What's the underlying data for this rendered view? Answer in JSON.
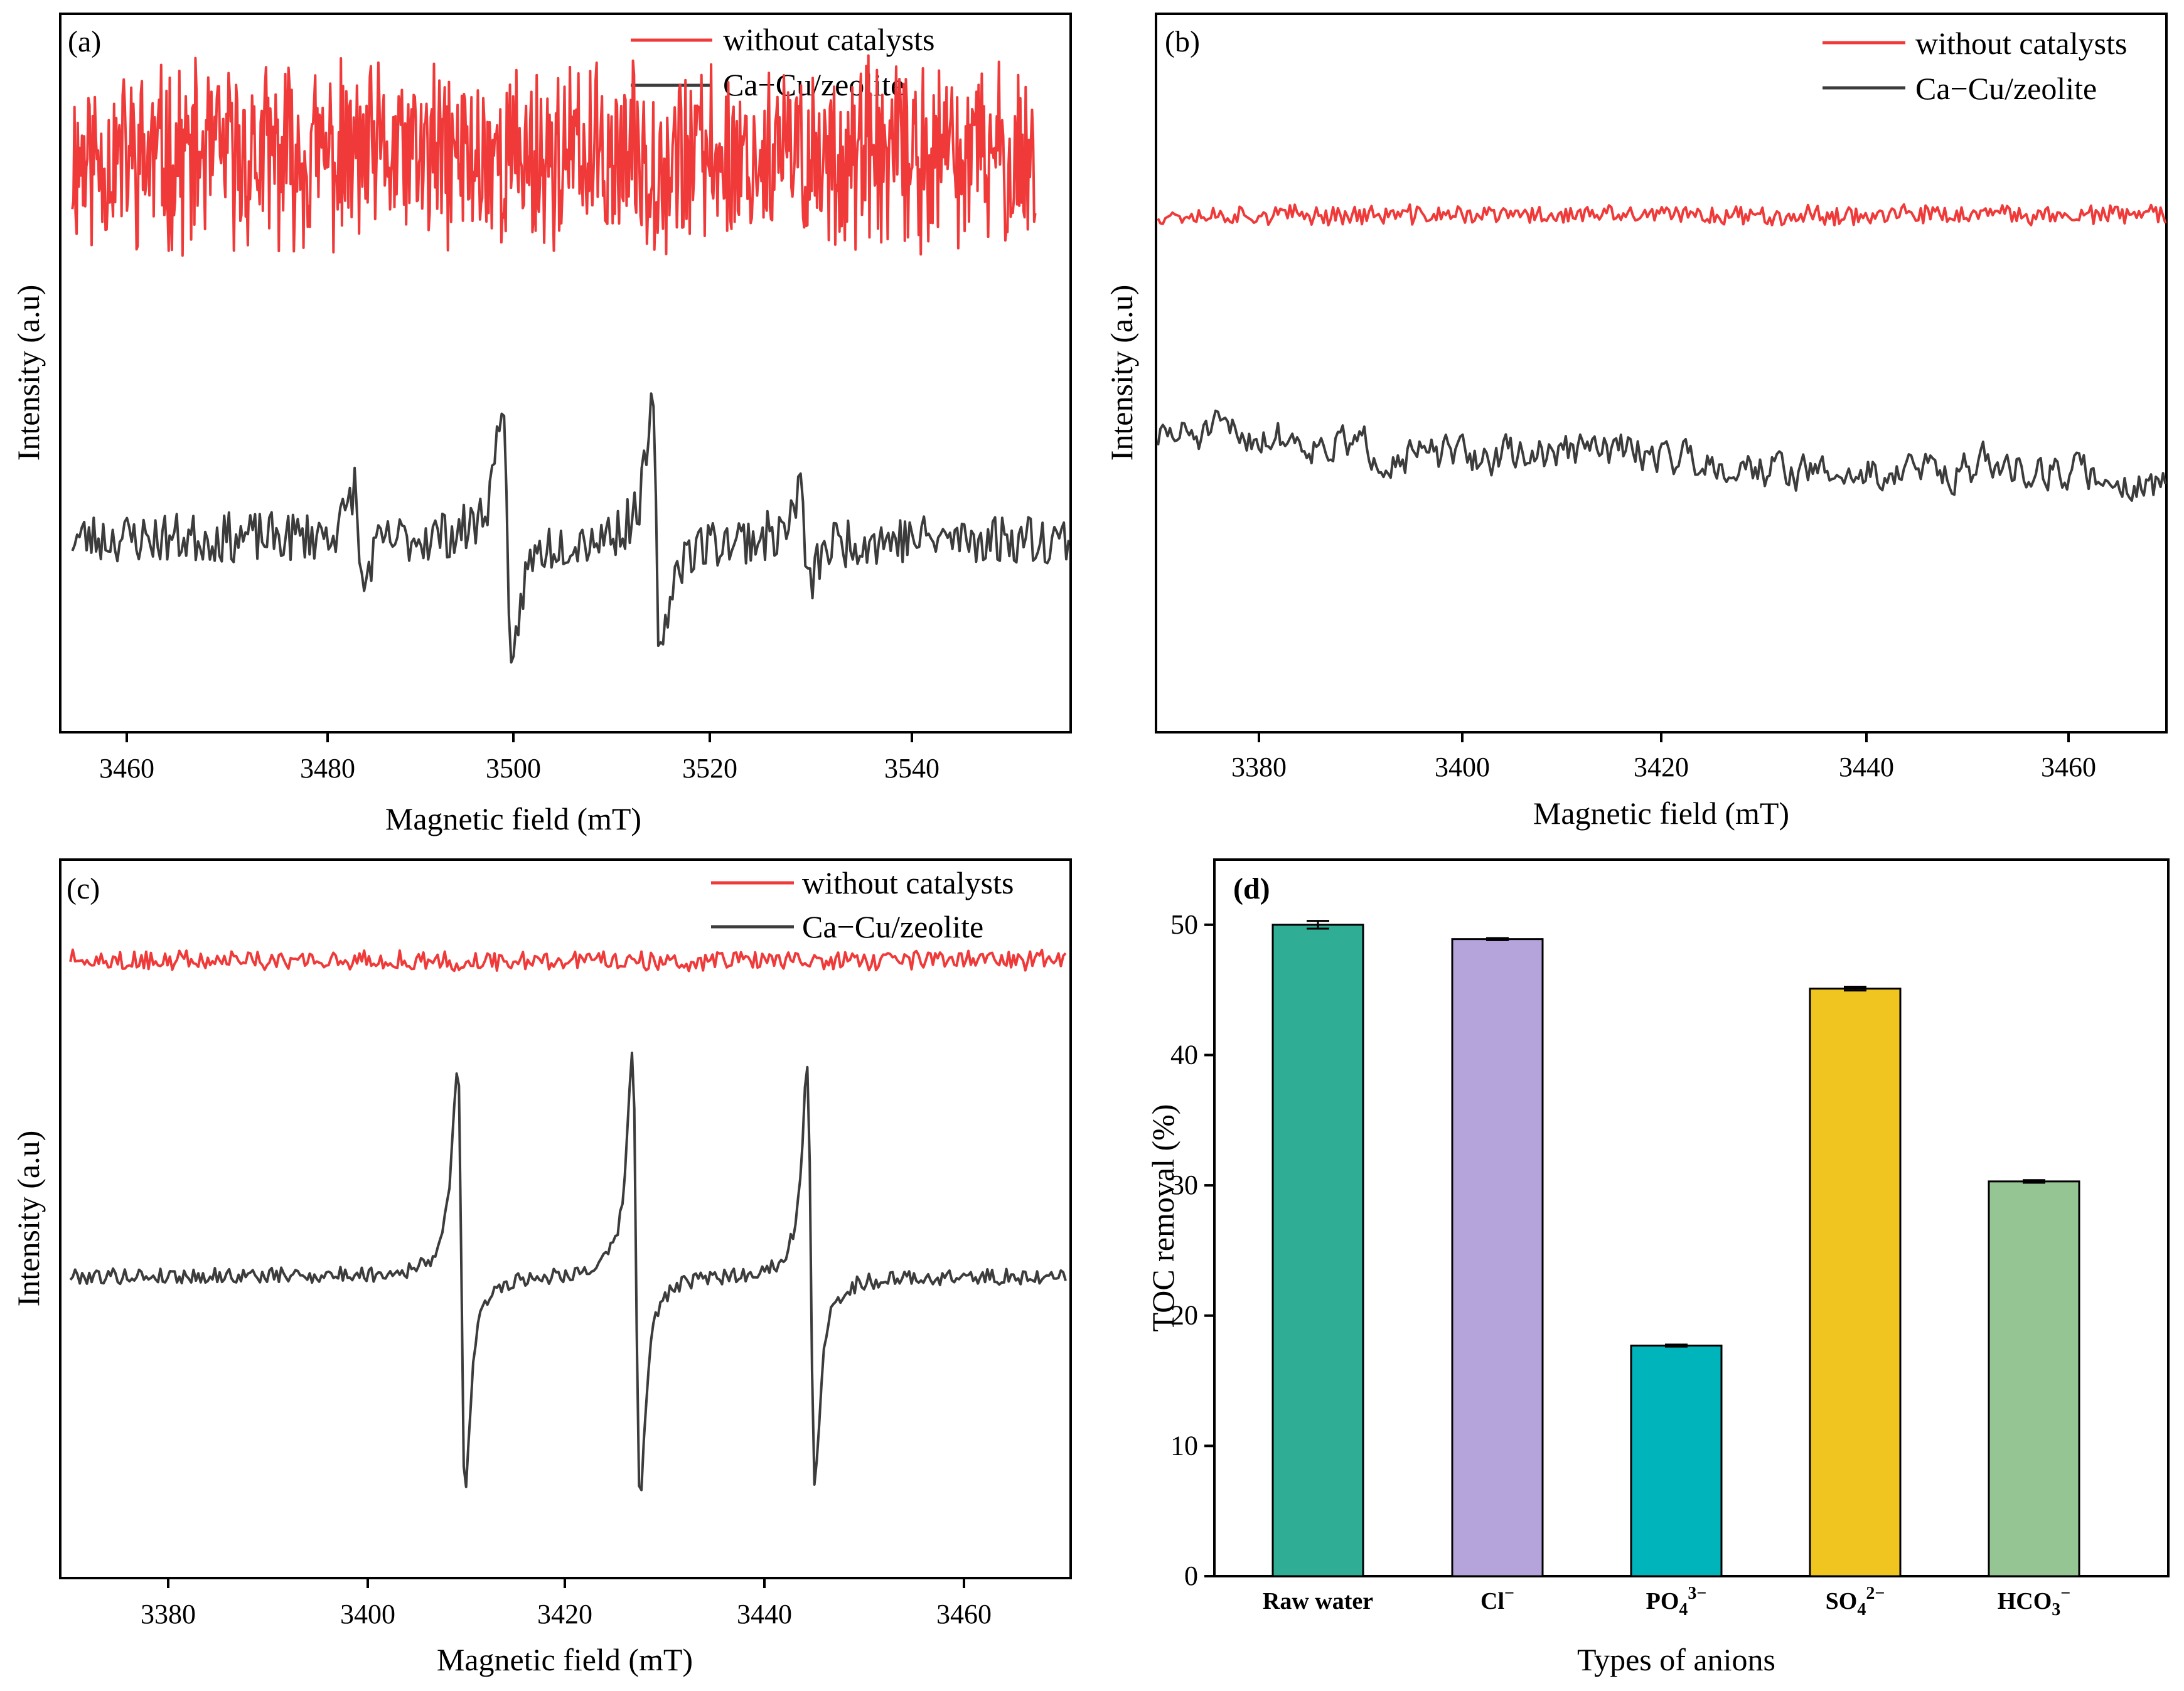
{
  "colors": {
    "without": "#f03a3a",
    "with": "#3c3c3c"
  },
  "chart_data": [
    {
      "panel": "(a)",
      "type": "line",
      "xlabel": "Magnetic field (mT)",
      "ylabel": "Intensity (a.u)",
      "xlim": [
        3455,
        3555
      ],
      "xticks": [
        3460,
        3480,
        3500,
        3520,
        3540
      ],
      "legend": [
        "without catalysts",
        "Ca−Cu/zeolite"
      ],
      "legend_position": "top-right",
      "series": [
        {
          "name": "without catalysts",
          "style": "noise",
          "baseline": 0.8,
          "noise": 0.11,
          "seed": 11
        },
        {
          "name": "Ca−Cu/zeolite",
          "style": "epr",
          "baseline": 0.27,
          "noise": 0.035,
          "seed": 23,
          "peaks": [
            {
              "x": 3484.5,
              "amp": 0.1,
              "w": 0.6
            },
            {
              "x": 3499.2,
              "amp": 0.28,
              "w": 0.65
            },
            {
              "x": 3514.0,
              "amp": 0.24,
              "w": 0.65
            },
            {
              "x": 3528.7,
              "amp": 0.1,
              "w": 0.6
            }
          ]
        }
      ]
    },
    {
      "panel": "(b)",
      "type": "line",
      "xlabel": "Magnetic field (mT)",
      "ylabel": "Intensity (a.u)",
      "xlim": [
        3370,
        3470
      ],
      "xticks": [
        3380,
        3400,
        3420,
        3440,
        3460
      ],
      "legend": [
        "without catalysts",
        "Ca−Cu/zeolite"
      ],
      "legend_position": "top-right",
      "series": [
        {
          "name": "without catalysts",
          "style": "noise",
          "baseline": 0.72,
          "noise": 0.012,
          "seed": 37
        },
        {
          "name": "Ca−Cu/zeolite",
          "style": "wavy",
          "baseline": 0.38,
          "noise": 0.022,
          "seed": 51
        }
      ]
    },
    {
      "panel": "(c)",
      "type": "line",
      "xlabel": "Magnetic field (mT)",
      "ylabel": "Intensity (a.u)",
      "xlim": [
        3370,
        3470
      ],
      "xticks": [
        3380,
        3400,
        3420,
        3440,
        3460
      ],
      "legend": [
        "without catalysts",
        "Ca−Cu/zeolite"
      ],
      "legend_position": "top-right",
      "series": [
        {
          "name": "without catalysts",
          "style": "noise",
          "baseline": 0.86,
          "noise": 0.012,
          "seed": 63
        },
        {
          "name": "Ca−Cu/zeolite",
          "style": "epr",
          "baseline": 0.42,
          "noise": 0.011,
          "seed": 79,
          "peaks": [
            {
              "x": 3409.7,
              "amp": 0.41,
              "w": 0.55
            },
            {
              "x": 3427.0,
              "amp": 0.43,
              "w": 0.55
            },
            {
              "x": 3444.3,
              "amp": 0.4,
              "w": 0.55
            }
          ]
        }
      ]
    },
    {
      "panel": "(d)",
      "type": "bar",
      "xlabel": "Types of anions",
      "ylabel": "TOC removal (%)",
      "ylim": [
        0,
        55
      ],
      "yticks": [
        0,
        10,
        20,
        30,
        40,
        50
      ],
      "categories": [
        {
          "main": "Raw water",
          "sub": "",
          "sup": ""
        },
        {
          "main": "Cl",
          "sub": "",
          "sup": "−"
        },
        {
          "main": "PO",
          "sub": "4",
          "sup": "3−"
        },
        {
          "main": "SO",
          "sub": "4",
          "sup": "2−"
        },
        {
          "main": "HCO",
          "sub": "3",
          "sup": "−"
        }
      ],
      "values": [
        50.0,
        48.9,
        17.7,
        45.1,
        30.3
      ],
      "errors": [
        0.3,
        0.08,
        0.08,
        0.15,
        0.1
      ],
      "bar_colors": [
        "#30ae95",
        "#b5a3dc",
        "#00b4bc",
        "#f0c51f",
        "#95c592"
      ]
    }
  ]
}
